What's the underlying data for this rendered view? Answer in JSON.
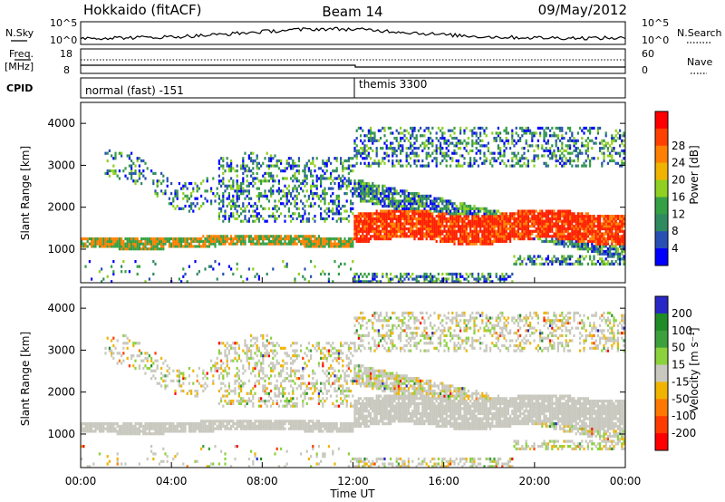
{
  "header": {
    "station": "Hokkaido (fitACF)",
    "beam": "Beam 14",
    "date": "09/May/2012"
  },
  "top_panel": {
    "nsky_label": "N.Sky",
    "nsearch_label": "N.Search",
    "left_ticks": [
      "10^5",
      "10^0"
    ],
    "right_ticks": [
      "10^5",
      "10^0"
    ]
  },
  "freq_panel": {
    "freq_label": "Freq.",
    "unit_label": "[MHz]",
    "nave_label": "Nave",
    "left_ticks": [
      "18",
      "8"
    ],
    "right_ticks": [
      "60",
      "0"
    ]
  },
  "cpid_panel": {
    "label": "CPID",
    "mode1": "normal (fast) -151",
    "mode2": "themis 3300"
  },
  "chart_data": [
    {
      "type": "heatmap",
      "name": "power",
      "ylabel": "Slant Range [km]",
      "ylim": [
        200,
        4500
      ],
      "yticks": [
        1000,
        2000,
        3000,
        4000
      ],
      "xlim": [
        0,
        24
      ],
      "colorbar": {
        "label": "Power [dB]",
        "ticks": [
          "4",
          "8",
          "12",
          "16",
          "20",
          "24",
          "28"
        ],
        "colors": [
          "#0000ff",
          "#2850b4",
          "#308a60",
          "#36a044",
          "#90d020",
          "#f0b400",
          "#ff8000",
          "#ff4000",
          "#ff0000"
        ]
      }
    },
    {
      "type": "heatmap",
      "name": "velocity",
      "ylabel": "Slant Range [km]",
      "ylim": [
        200,
        4500
      ],
      "yticks": [
        1000,
        2000,
        3000,
        4000
      ],
      "xlim": [
        0,
        24
      ],
      "colorbar": {
        "label": "Velocity [m s⁻¹]",
        "ticks": [
          "200",
          "100",
          "50",
          "15",
          "-15",
          "-50",
          "-100",
          "-200"
        ],
        "colors": [
          "#2828c8",
          "#1f8c28",
          "#3ca03c",
          "#8cd23c",
          "#c8c8be",
          "#f0b400",
          "#ff7800",
          "#ff3c00",
          "#ff0000"
        ]
      }
    }
  ],
  "time_axis": {
    "xlabel": "Time UT",
    "ticks": [
      "00:00",
      "04:00",
      "08:00",
      "12:00",
      "16:00",
      "20:00",
      "00:00"
    ]
  }
}
